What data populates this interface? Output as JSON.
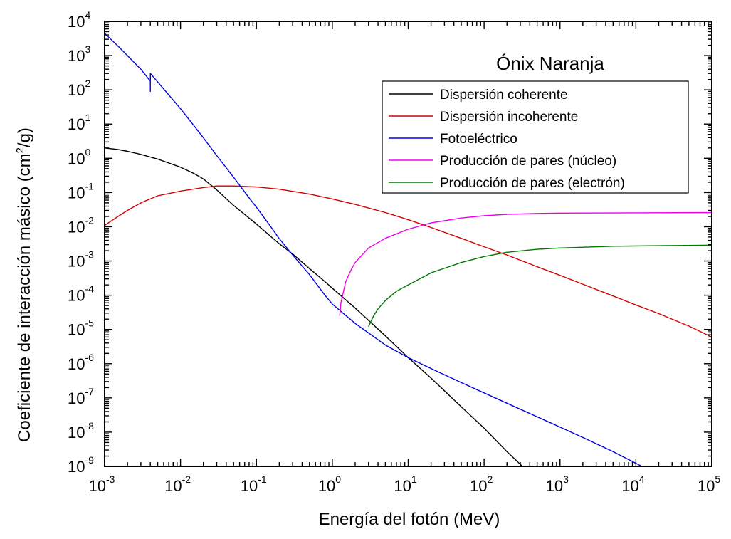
{
  "chart_data": {
    "type": "line",
    "title": "Ónix Naranja",
    "xlabel": "Energía del fotón (MeV)",
    "ylabel": {
      "prefix": "Coeficiente de interacción másico (cm",
      "sup": "2",
      "suffix": "/g)"
    },
    "x_scale": "log",
    "y_scale": "log",
    "xlim": [
      0.001,
      100000
    ],
    "ylim": [
      1e-09,
      10000
    ],
    "x_ticks": [
      {
        "base": "10",
        "exp": "-3"
      },
      {
        "base": "10",
        "exp": "-2"
      },
      {
        "base": "10",
        "exp": "-1"
      },
      {
        "base": "10",
        "exp": "0"
      },
      {
        "base": "10",
        "exp": "1"
      },
      {
        "base": "10",
        "exp": "2"
      },
      {
        "base": "10",
        "exp": "3"
      },
      {
        "base": "10",
        "exp": "4"
      },
      {
        "base": "10",
        "exp": "5"
      }
    ],
    "y_ticks": [
      {
        "base": "10",
        "exp": "4"
      },
      {
        "base": "10",
        "exp": "3"
      },
      {
        "base": "10",
        "exp": "2"
      },
      {
        "base": "10",
        "exp": "1"
      },
      {
        "base": "10",
        "exp": "0"
      },
      {
        "base": "10",
        "exp": "-1"
      },
      {
        "base": "10",
        "exp": "-2"
      },
      {
        "base": "10",
        "exp": "-3"
      },
      {
        "base": "10",
        "exp": "-4"
      },
      {
        "base": "10",
        "exp": "-5"
      },
      {
        "base": "10",
        "exp": "-6"
      },
      {
        "base": "10",
        "exp": "-7"
      },
      {
        "base": "10",
        "exp": "-8"
      },
      {
        "base": "10",
        "exp": "-9"
      }
    ],
    "grid": false,
    "legend_position": "top-right",
    "series": [
      {
        "name": "Dispersión coherente",
        "color": "#000000",
        "points": [
          [
            0.001,
            2.0
          ],
          [
            0.0015,
            1.8
          ],
          [
            0.002,
            1.6
          ],
          [
            0.003,
            1.3
          ],
          [
            0.005,
            0.95
          ],
          [
            0.01,
            0.55
          ],
          [
            0.015,
            0.36
          ],
          [
            0.02,
            0.25
          ],
          [
            0.03,
            0.12
          ],
          [
            0.05,
            0.042
          ],
          [
            0.08,
            0.018
          ],
          [
            0.1,
            0.012
          ],
          [
            0.15,
            0.0055
          ],
          [
            0.2,
            0.0032
          ],
          [
            0.3,
            0.0016
          ],
          [
            0.5,
            0.0006
          ],
          [
            0.8,
            0.00025
          ],
          [
            1.0,
            0.00016
          ],
          [
            2.0,
            4.2e-05
          ],
          [
            5.0,
            6.5e-06
          ],
          [
            10.0,
            1.5e-06
          ],
          [
            20.0,
            3.8e-07
          ],
          [
            50.0,
            5.5e-08
          ],
          [
            100.0,
            1.3e-08
          ],
          [
            200.0,
            2.7e-09
          ],
          [
            320.0,
            1e-09
          ]
        ]
      },
      {
        "name": "Dispersión incoherente",
        "color": "#d40000",
        "points": [
          [
            0.001,
            0.011
          ],
          [
            0.0015,
            0.02
          ],
          [
            0.002,
            0.03
          ],
          [
            0.003,
            0.05
          ],
          [
            0.005,
            0.08
          ],
          [
            0.01,
            0.11
          ],
          [
            0.02,
            0.14
          ],
          [
            0.03,
            0.155
          ],
          [
            0.05,
            0.155
          ],
          [
            0.1,
            0.145
          ],
          [
            0.2,
            0.125
          ],
          [
            0.5,
            0.09
          ],
          [
            1.0,
            0.065
          ],
          [
            2.0,
            0.045
          ],
          [
            5.0,
            0.026
          ],
          [
            10.0,
            0.016
          ],
          [
            20.0,
            0.0095
          ],
          [
            50.0,
            0.0046
          ],
          [
            100.0,
            0.0026
          ],
          [
            200.0,
            0.0015
          ],
          [
            500.0,
            0.00068
          ],
          [
            1000.0,
            0.00038
          ],
          [
            2000.0,
            0.00021
          ],
          [
            5000.0,
            9.5e-05
          ],
          [
            10000.0,
            5.2e-05
          ],
          [
            20000.0,
            2.9e-05
          ],
          [
            50000.0,
            1.25e-05
          ],
          [
            100000.0,
            6e-06
          ]
        ]
      },
      {
        "name": "Fotoeléctrico",
        "color": "#0000e0",
        "points": [
          [
            0.001,
            4500.0
          ],
          [
            0.0015,
            1900.0
          ],
          [
            0.002,
            1000.0
          ],
          [
            0.003,
            400.0
          ],
          [
            0.004,
            180.0
          ],
          [
            0.004,
            90.0
          ],
          [
            0.00401,
            300.0
          ],
          [
            0.005,
            170.0
          ],
          [
            0.008,
            50.0
          ],
          [
            0.01,
            28.0
          ],
          [
            0.015,
            9.0
          ],
          [
            0.02,
            4.0
          ],
          [
            0.03,
            1.2
          ],
          [
            0.05,
            0.28
          ],
          [
            0.08,
            0.07
          ],
          [
            0.1,
            0.037
          ],
          [
            0.15,
            0.011
          ],
          [
            0.2,
            0.0045
          ],
          [
            0.3,
            0.0015
          ],
          [
            0.5,
            0.0004
          ],
          [
            0.8,
            0.0001
          ],
          [
            1.0,
            5.5e-05
          ],
          [
            2.0,
            1.5e-05
          ],
          [
            5.0,
            3.5e-06
          ],
          [
            10.0,
            1.5e-06
          ],
          [
            20.0,
            7.2e-07
          ],
          [
            50.0,
            2.8e-07
          ],
          [
            100.0,
            1.4e-07
          ],
          [
            200.0,
            7e-08
          ],
          [
            500.0,
            2.8e-08
          ],
          [
            1000.0,
            1.4e-08
          ],
          [
            2000.0,
            7e-09
          ],
          [
            5000.0,
            2.7e-09
          ],
          [
            12000.0,
            1e-09
          ]
        ]
      },
      {
        "name": "Producción de pares (núcleo)",
        "color": "#ee00ee",
        "points": [
          [
            1.25,
            2.5e-05
          ],
          [
            1.3,
            6e-05
          ],
          [
            1.5,
            0.00025
          ],
          [
            1.8,
            0.0006
          ],
          [
            2.0,
            0.0009
          ],
          [
            3.0,
            0.0024
          ],
          [
            5.0,
            0.0046
          ],
          [
            10.0,
            0.0085
          ],
          [
            20.0,
            0.013
          ],
          [
            50.0,
            0.018
          ],
          [
            100.0,
            0.021
          ],
          [
            200.0,
            0.023
          ],
          [
            500.0,
            0.0245
          ],
          [
            1000.0,
            0.025
          ],
          [
            10000.0,
            0.0255
          ],
          [
            100000.0,
            0.026
          ]
        ]
      },
      {
        "name": "Producción de pares (electrón)",
        "color": "#007a00",
        "points": [
          [
            3.0,
            1.2e-05
          ],
          [
            3.5,
            2.5e-05
          ],
          [
            4.0,
            4e-05
          ],
          [
            5.0,
            7e-05
          ],
          [
            7.0,
            0.00013
          ],
          [
            10.0,
            0.0002
          ],
          [
            20.0,
            0.00045
          ],
          [
            50.0,
            0.0009
          ],
          [
            100.0,
            0.00135
          ],
          [
            200.0,
            0.0018
          ],
          [
            500.0,
            0.0022
          ],
          [
            1000.0,
            0.0024
          ],
          [
            5000.0,
            0.0027
          ],
          [
            100000.0,
            0.0029
          ]
        ]
      }
    ]
  }
}
